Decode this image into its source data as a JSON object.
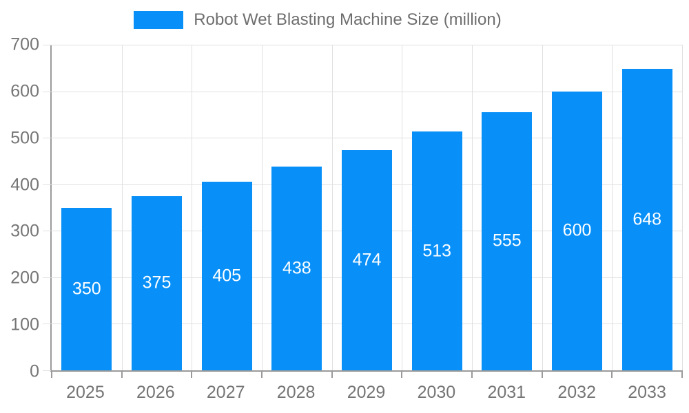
{
  "legend": {
    "label": "Robot Wet Blasting Machine Size (million)"
  },
  "chart_data": {
    "type": "bar",
    "title": "Robot Wet Blasting Machine Size (million)",
    "series_name": "Robot Wet Blasting Machine Size (million)",
    "categories": [
      "2025",
      "2026",
      "2027",
      "2028",
      "2029",
      "2030",
      "2031",
      "2032",
      "2033"
    ],
    "values": [
      350,
      375,
      405,
      438,
      474,
      513,
      555,
      600,
      648
    ],
    "xlabel": "",
    "ylabel": "",
    "ylim": [
      0,
      700
    ],
    "yticks": [
      0,
      100,
      200,
      300,
      400,
      500,
      600,
      700
    ],
    "grid": true,
    "legend_position": "top-center",
    "value_labels": "inside-center",
    "colors": {
      "bar": "#0890f8",
      "value_label": "#ffffff",
      "axis_line": "#9a9a9a",
      "grid_line": "#e0e0e0",
      "tick_label": "#757575",
      "legend_text": "#6e6e6e"
    }
  }
}
